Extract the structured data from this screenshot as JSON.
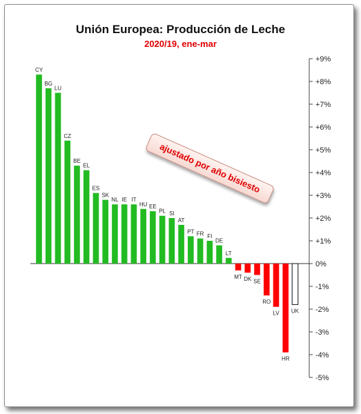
{
  "chart_data": {
    "type": "bar",
    "title": "Unión Europea: Producción de Leche",
    "subtitle": "2020/19, ene-mar",
    "annotation": "ajustado por año bisiesto",
    "categories": [
      "CY",
      "BG",
      "LU",
      "CZ",
      "BE",
      "EL",
      "ES",
      "SK",
      "NL",
      "IE",
      "IT",
      "HU",
      "EE",
      "PL",
      "SI",
      "AT",
      "PT",
      "FR",
      "FI",
      "DE",
      "LT",
      "MT",
      "DK",
      "SE",
      "RO",
      "LV",
      "HR",
      "UK"
    ],
    "values": [
      8.3,
      7.7,
      7.5,
      5.4,
      4.3,
      4.1,
      3.1,
      2.8,
      2.6,
      2.6,
      2.6,
      2.4,
      2.3,
      2.1,
      2.0,
      1.7,
      1.2,
      1.1,
      1.0,
      0.8,
      0.25,
      -0.3,
      -0.4,
      -0.5,
      -1.4,
      -1.9,
      -3.9,
      -1.8
    ],
    "bar_fill": [
      "#22bb22",
      "#22bb22",
      "#22bb22",
      "#22bb22",
      "#22bb22",
      "#22bb22",
      "#22bb22",
      "#22bb22",
      "#22bb22",
      "#22bb22",
      "#22bb22",
      "#22bb22",
      "#22bb22",
      "#22bb22",
      "#22bb22",
      "#22bb22",
      "#22bb22",
      "#22bb22",
      "#22bb22",
      "#22bb22",
      "#22bb22",
      "#ff0000",
      "#ff0000",
      "#ff0000",
      "#ff0000",
      "#ff0000",
      "#ff0000",
      "#ffffff"
    ],
    "bar_stroke": [
      "none",
      "none",
      "none",
      "none",
      "none",
      "none",
      "none",
      "none",
      "none",
      "none",
      "none",
      "none",
      "none",
      "none",
      "none",
      "none",
      "none",
      "none",
      "none",
      "none",
      "none",
      "none",
      "none",
      "none",
      "none",
      "none",
      "none",
      "#111111"
    ],
    "yticks": [
      9,
      8,
      7,
      6,
      5,
      4,
      3,
      2,
      1,
      0,
      -1,
      -2,
      -3,
      -4,
      -5
    ],
    "ytick_labels": [
      "+9%",
      "+8%",
      "+7%",
      "+6%",
      "+5%",
      "+4%",
      "+3%",
      "+2%",
      "+1%",
      "0%",
      "-1%",
      "-2%",
      "-3%",
      "-4%",
      "-5%"
    ],
    "ylim": [
      -5,
      9
    ],
    "grid": false,
    "colors": {
      "positive": "#22bb22",
      "negative": "#ff0000",
      "subtitle": "#e00000"
    }
  }
}
